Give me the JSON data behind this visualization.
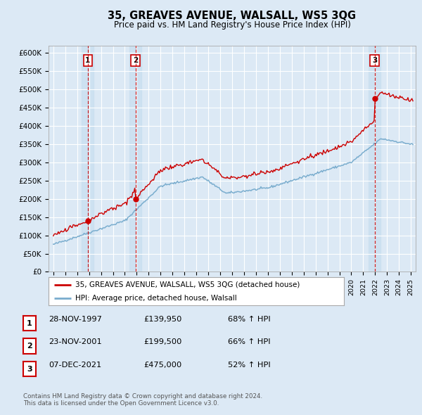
{
  "title": "35, GREAVES AVENUE, WALSALL, WS5 3QG",
  "subtitle": "Price paid vs. HM Land Registry's House Price Index (HPI)",
  "legend_label_red": "35, GREAVES AVENUE, WALSALL, WS5 3QG (detached house)",
  "legend_label_blue": "HPI: Average price, detached house, Walsall",
  "footer_line1": "Contains HM Land Registry data © Crown copyright and database right 2024.",
  "footer_line2": "This data is licensed under the Open Government Licence v3.0.",
  "transactions": [
    {
      "num": 1,
      "date": "28-NOV-1997",
      "price": 139950,
      "year": 1997.9,
      "pct": "68% ↑ HPI"
    },
    {
      "num": 2,
      "date": "23-NOV-2001",
      "price": 199500,
      "year": 2001.9,
      "pct": "66% ↑ HPI"
    },
    {
      "num": 3,
      "date": "07-DEC-2021",
      "price": 475000,
      "year": 2021.95,
      "pct": "52% ↑ HPI"
    }
  ],
  "background_color": "#dce9f5",
  "plot_bg_color": "#dce9f5",
  "grid_color": "#ffffff",
  "red_line_color": "#cc0000",
  "blue_line_color": "#7aadce",
  "vline_color": "#cc0000",
  "shade_color": "#c8dff0",
  "ylim": [
    0,
    620000
  ],
  "yticks": [
    0,
    50000,
    100000,
    150000,
    200000,
    250000,
    300000,
    350000,
    400000,
    450000,
    500000,
    550000,
    600000
  ],
  "xlim_start": 1994.6,
  "xlim_end": 2025.4
}
